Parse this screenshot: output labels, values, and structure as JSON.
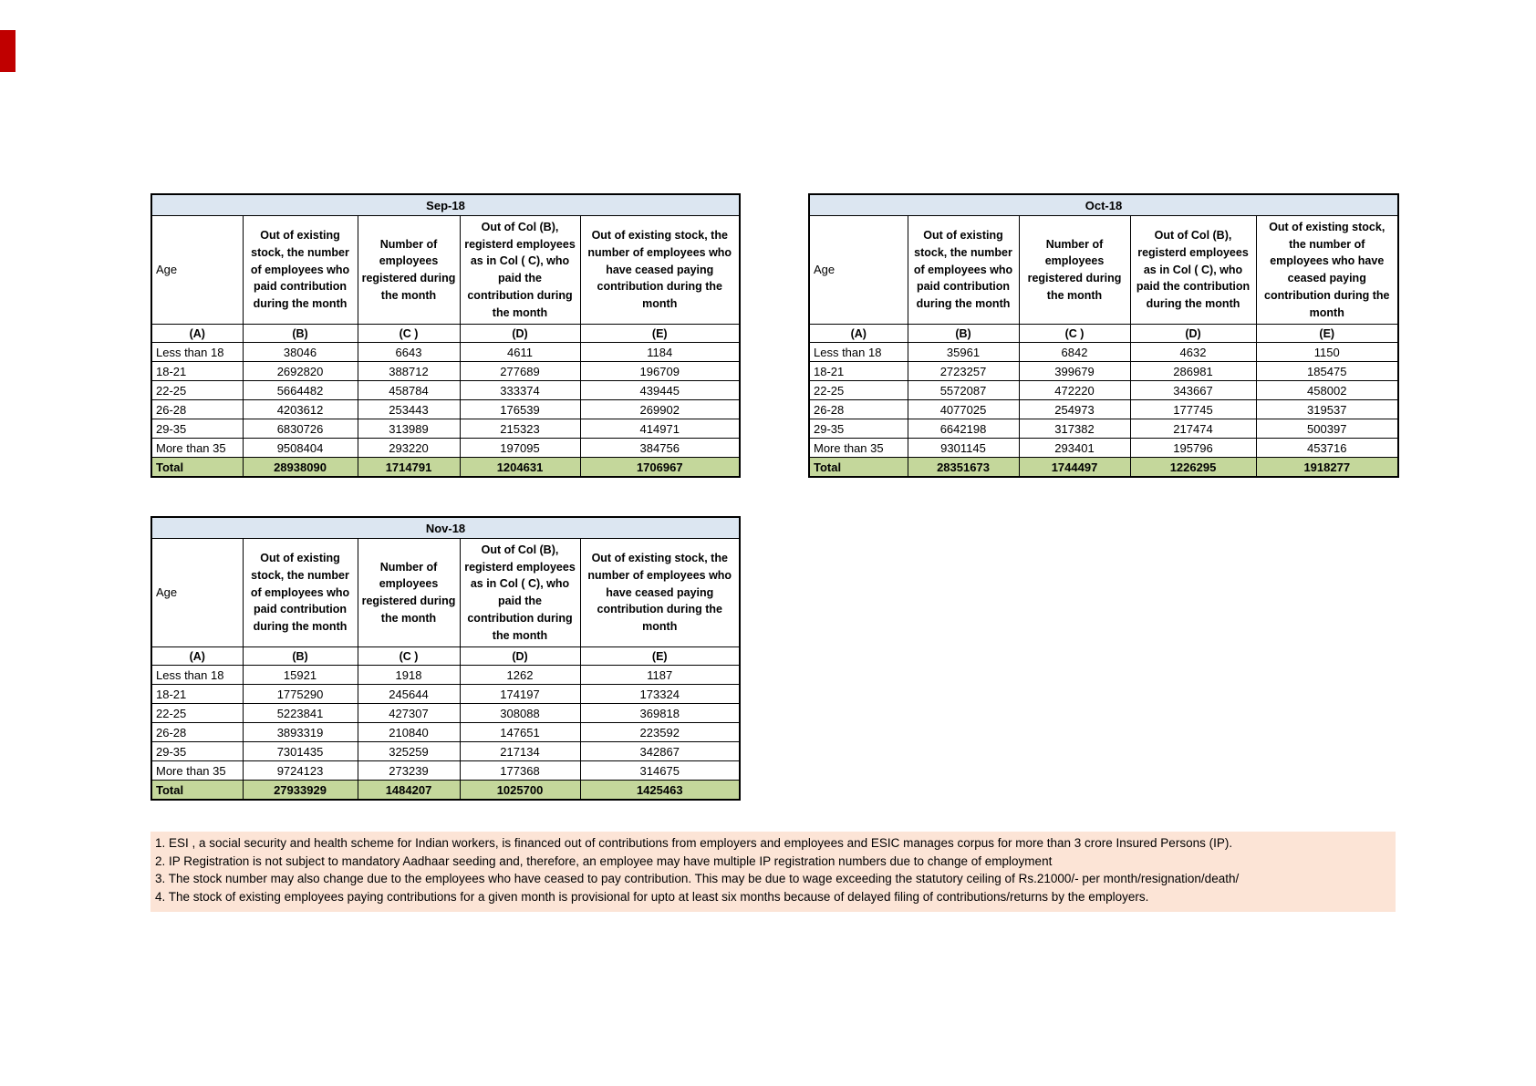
{
  "colors": {
    "month_band": "#dce6f1",
    "total_row": "#c4d79b",
    "notes_background": "#fce4d6",
    "border": "#000000",
    "accent_mark": "#c00000"
  },
  "tables": [
    {
      "title": "Sep-18",
      "headers": [
        "Age",
        "Out of existing stock, the number of employees who paid contribution during the month",
        "Number of employees registered during the month",
        "Out of Col (B), registerd employees as in Col ( C), who paid the contribution during the month",
        "Out of existing stock, the number of employees who have ceased paying contribution during the month"
      ],
      "letters": [
        "(A)",
        "(B)",
        "(C )",
        "(D)",
        "(E)"
      ],
      "rows": [
        [
          "Less than 18",
          "38046",
          "6643",
          "4611",
          "1184"
        ],
        [
          "18-21",
          "2692820",
          "388712",
          "277689",
          "196709"
        ],
        [
          "22-25",
          "5664482",
          "458784",
          "333374",
          "439445"
        ],
        [
          "26-28",
          "4203612",
          "253443",
          "176539",
          "269902"
        ],
        [
          "29-35",
          "6830726",
          "313989",
          "215323",
          "414971"
        ],
        [
          "More than 35",
          "9508404",
          "293220",
          "197095",
          "384756"
        ]
      ],
      "total": [
        "Total",
        "28938090",
        "1714791",
        "1204631",
        "1706967"
      ]
    },
    {
      "title": "Oct-18",
      "headers": [
        "Age",
        "Out of existing stock, the number of employees who paid contribution during the month",
        "Number of employees registered during the month",
        "Out of Col (B), registerd employees as in Col ( C), who paid the contribution during the month",
        "Out of existing stock, the number of employees who have ceased paying contribution during the month"
      ],
      "letters": [
        "(A)",
        "(B)",
        "(C )",
        "(D)",
        "(E)"
      ],
      "rows": [
        [
          "Less than 18",
          "35961",
          "6842",
          "4632",
          "1150"
        ],
        [
          "18-21",
          "2723257",
          "399679",
          "286981",
          "185475"
        ],
        [
          "22-25",
          "5572087",
          "472220",
          "343667",
          "458002"
        ],
        [
          "26-28",
          "4077025",
          "254973",
          "177745",
          "319537"
        ],
        [
          "29-35",
          "6642198",
          "317382",
          "217474",
          "500397"
        ],
        [
          "More than 35",
          "9301145",
          "293401",
          "195796",
          "453716"
        ]
      ],
      "total": [
        "Total",
        "28351673",
        "1744497",
        "1226295",
        "1918277"
      ]
    },
    {
      "title": "Nov-18",
      "headers": [
        "Age",
        "Out of existing stock, the number of employees who paid contribution during the month",
        "Number of employees registered during the month",
        "Out of Col (B), registerd employees as in Col ( C), who paid the contribution during the month",
        "Out of existing stock, the number of employees who have ceased paying contribution during the month"
      ],
      "letters": [
        "(A)",
        "(B)",
        "(C )",
        "(D)",
        "(E)"
      ],
      "rows": [
        [
          "Less than 18",
          "15921",
          "1918",
          "1262",
          "1187"
        ],
        [
          "18-21",
          "1775290",
          "245644",
          "174197",
          "173324"
        ],
        [
          "22-25",
          "5223841",
          "427307",
          "308088",
          "369818"
        ],
        [
          "26-28",
          "3893319",
          "210840",
          "147651",
          "223592"
        ],
        [
          "29-35",
          "7301435",
          "325259",
          "217134",
          "342867"
        ],
        [
          "More than 35",
          "9724123",
          "273239",
          "177368",
          "314675"
        ]
      ],
      "total": [
        "Total",
        "27933929",
        "1484207",
        "1025700",
        "1425463"
      ]
    }
  ],
  "notes": [
    "1. ESI , a social security and health scheme for Indian workers, is financed out of contributions from employers and employees and ESIC manages corpus for more than 3 crore Insured Persons (IP).",
    "2. IP Registration is not subject to mandatory Aadhaar seeding and, therefore, an employee may have multiple IP registration numbers due to change of employment",
    "3. The stock number may also change due to the employees who have ceased to pay contribution. This may  be due to wage exceeding the statutory ceiling of  Rs.21000/- per month/resignation/death/",
    "4. The stock of existing employees paying contributions for a given month is provisional for upto at least six months because of delayed filing of contributions/returns by the employers."
  ]
}
